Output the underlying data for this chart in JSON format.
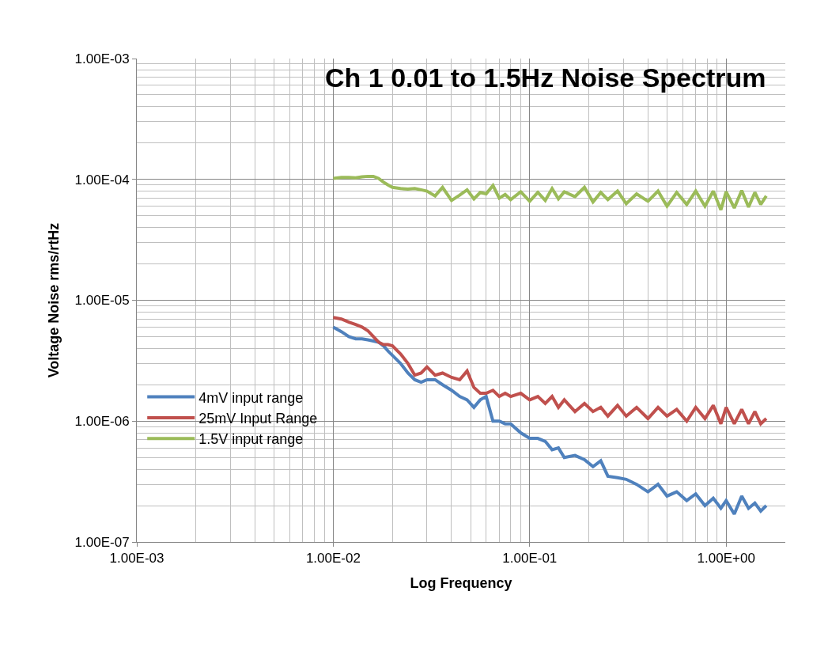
{
  "chart_data": {
    "type": "line",
    "title": "Ch 1 0.01 to 1.5Hz Noise Spectrum",
    "xlabel": "Log Frequency",
    "ylabel": "Voltage Noise rms/rtHz",
    "log": "xy",
    "grid": true,
    "legend": "bottom left",
    "marker": "none",
    "line_style": "solid",
    "xlim": [
      0.001,
      2
    ],
    "ylim": [
      1e-07,
      0.001
    ],
    "xticks": [
      {
        "value": 0.001,
        "label": "1.00E-03"
      },
      {
        "value": 0.01,
        "label": "1.00E-02"
      },
      {
        "value": 0.1,
        "label": "1.00E-01"
      },
      {
        "value": 1,
        "label": "1.00E+00"
      }
    ],
    "yticks": [
      {
        "value": 1e-07,
        "label": "1.00E-07"
      },
      {
        "value": 1e-06,
        "label": "1.00E-06"
      },
      {
        "value": 1e-05,
        "label": "1.00E-05"
      },
      {
        "value": 0.0001,
        "label": "1.00E-04"
      },
      {
        "value": 0.001,
        "label": "1.00E-03"
      }
    ],
    "x": [
      0.01,
      0.011,
      0.012,
      0.013,
      0.014,
      0.015,
      0.016,
      0.017,
      0.018,
      0.019,
      0.02,
      0.022,
      0.024,
      0.026,
      0.028,
      0.03,
      0.033,
      0.036,
      0.04,
      0.044,
      0.048,
      0.052,
      0.056,
      0.06,
      0.065,
      0.07,
      0.075,
      0.08,
      0.09,
      0.1,
      0.11,
      0.12,
      0.13,
      0.14,
      0.15,
      0.17,
      0.19,
      0.21,
      0.23,
      0.25,
      0.28,
      0.31,
      0.35,
      0.4,
      0.45,
      0.5,
      0.56,
      0.63,
      0.7,
      0.78,
      0.86,
      0.94,
      1.0,
      1.1,
      1.2,
      1.3,
      1.4,
      1.5,
      1.6
    ],
    "series": [
      {
        "name": "4mV input range",
        "color": "#4f81bd",
        "values": [
          6e-06,
          5.5e-06,
          5e-06,
          4.8e-06,
          4.8e-06,
          4.7e-06,
          4.6e-06,
          4.5e-06,
          4.2e-06,
          3.8e-06,
          3.5e-06,
          3e-06,
          2.5e-06,
          2.2e-06,
          2.1e-06,
          2.2e-06,
          2.2e-06,
          2e-06,
          1.8e-06,
          1.6e-06,
          1.5e-06,
          1.3e-06,
          1.5e-06,
          1.6e-06,
          1e-06,
          1e-06,
          9.5e-07,
          9.5e-07,
          8e-07,
          7.2e-07,
          7.2e-07,
          6.8e-07,
          5.8e-07,
          6e-07,
          5e-07,
          5.2e-07,
          4.8e-07,
          4.2e-07,
          4.7e-07,
          3.5e-07,
          3.4e-07,
          3.3e-07,
          3e-07,
          2.6e-07,
          3e-07,
          2.4e-07,
          2.6e-07,
          2.2e-07,
          2.5e-07,
          2e-07,
          2.3e-07,
          1.9e-07,
          2.2e-07,
          1.7e-07,
          2.4e-07,
          1.9e-07,
          2.1e-07,
          1.8e-07,
          2e-07
        ]
      },
      {
        "name": "25mV Input Range",
        "color": "#c0504d",
        "values": [
          7.2e-06,
          7e-06,
          6.6e-06,
          6.3e-06,
          6e-06,
          5.6e-06,
          5e-06,
          4.5e-06,
          4.3e-06,
          4.3e-06,
          4.2e-06,
          3.6e-06,
          3e-06,
          2.4e-06,
          2.5e-06,
          2.8e-06,
          2.4e-06,
          2.5e-06,
          2.3e-06,
          2.2e-06,
          2.6e-06,
          1.9e-06,
          1.7e-06,
          1.7e-06,
          1.8e-06,
          1.6e-06,
          1.7e-06,
          1.6e-06,
          1.7e-06,
          1.5e-06,
          1.6e-06,
          1.4e-06,
          1.6e-06,
          1.3e-06,
          1.5e-06,
          1.2e-06,
          1.4e-06,
          1.2e-06,
          1.3e-06,
          1.1e-06,
          1.35e-06,
          1.1e-06,
          1.3e-06,
          1.05e-06,
          1.3e-06,
          1.1e-06,
          1.25e-06,
          1e-06,
          1.3e-06,
          1.05e-06,
          1.35e-06,
          9.5e-07,
          1.3e-06,
          9.5e-07,
          1.25e-06,
          9.5e-07,
          1.2e-06,
          9.5e-07,
          1.05e-06
        ]
      },
      {
        "name": "1.5V input range",
        "color": "#9bbb59",
        "values": [
          0.000102,
          0.000104,
          0.000104,
          0.000103,
          0.000105,
          0.000106,
          0.000106,
          0.000102,
          9.5e-05,
          9e-05,
          8.6e-05,
          8.4e-05,
          8.3e-05,
          8.4e-05,
          8.2e-05,
          8e-05,
          7.3e-05,
          8.6e-05,
          6.7e-05,
          7.4e-05,
          8.2e-05,
          6.9e-05,
          7.8e-05,
          7.6e-05,
          8.9e-05,
          7e-05,
          7.5e-05,
          6.8e-05,
          7.9e-05,
          6.6e-05,
          7.8e-05,
          6.7e-05,
          8.4e-05,
          6.9e-05,
          7.9e-05,
          7.2e-05,
          8.6e-05,
          6.5e-05,
          7.8e-05,
          6.8e-05,
          8e-05,
          6.3e-05,
          7.6e-05,
          6.6e-05,
          8e-05,
          6e-05,
          7.8e-05,
          6.2e-05,
          8e-05,
          6e-05,
          8e-05,
          5.6e-05,
          7.9e-05,
          5.8e-05,
          8.1e-05,
          5.9e-05,
          7.8e-05,
          6.2e-05,
          7.3e-05
        ]
      }
    ]
  }
}
